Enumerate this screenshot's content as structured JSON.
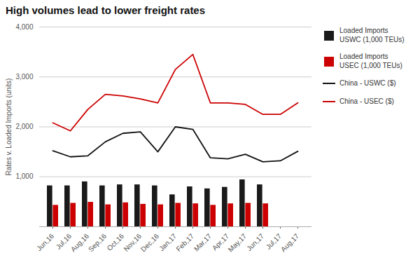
{
  "chart_data": {
    "type": "bar",
    "title": "High volumes lead to lower freight rates",
    "ylabel": "Rates v. Loaded Imports (units)",
    "categories": [
      "Jun,16",
      "Jul,16",
      "Aug,16",
      "Sep,16",
      "Oct,16",
      "Nov,16",
      "Dec,16",
      "Jan,17",
      "Feb,17",
      "Mar,17",
      "Apr,17",
      "May,17",
      "Jun,17",
      "Jul,17",
      "Aug,17"
    ],
    "series": [
      {
        "name": "Loaded Imports\nUSWC (1,000 TEUs)",
        "type": "bar",
        "color": "#1a1a1a",
        "values": [
          820,
          820,
          900,
          820,
          840,
          840,
          820,
          640,
          800,
          760,
          790,
          940,
          840,
          0,
          0
        ]
      },
      {
        "name": "Loaded Imports\nUSEC (1,000 TEUs)",
        "type": "bar",
        "color": "#cc0000",
        "values": [
          430,
          470,
          490,
          440,
          480,
          450,
          440,
          470,
          460,
          430,
          460,
          470,
          460,
          0,
          0
        ]
      },
      {
        "name": "China - USWC ($)",
        "type": "line",
        "color": "#111111",
        "line_style": "solid",
        "values": [
          1520,
          1400,
          1420,
          1700,
          1870,
          1900,
          1500,
          2000,
          1950,
          1380,
          1360,
          1450,
          1300,
          1320,
          1510
        ]
      },
      {
        "name": "China - USEC ($)",
        "type": "line",
        "color": "#cc0000",
        "line_style": "solid",
        "values": [
          2080,
          1920,
          2350,
          2650,
          2620,
          2560,
          2480,
          3150,
          3450,
          2480,
          2480,
          2450,
          2250,
          2250,
          2480
        ]
      }
    ],
    "ylim": [
      0,
      4000
    ],
    "yticks": [
      {
        "value": 1000,
        "label": "1,000"
      },
      {
        "value": 2000,
        "label": "2,000"
      },
      {
        "value": 3000,
        "label": "3,000"
      },
      {
        "value": 4000,
        "label": "4,000"
      }
    ],
    "grid": true,
    "legend": "right"
  }
}
